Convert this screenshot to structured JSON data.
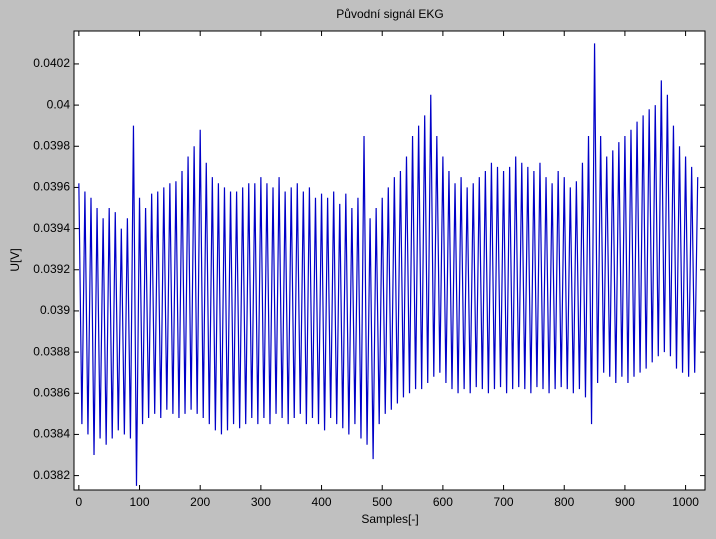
{
  "chart_data": {
    "type": "line",
    "title": "Původní signál EKG",
    "x_label": "Samples[-]",
    "y_label": "U[V]",
    "color": "#0000c8",
    "x": [
      0,
      5,
      10,
      15,
      20,
      25,
      30,
      35,
      40,
      45,
      50,
      55,
      60,
      65,
      70,
      75,
      80,
      85,
      90,
      95,
      100,
      105,
      110,
      115,
      120,
      125,
      130,
      135,
      140,
      145,
      150,
      155,
      160,
      165,
      170,
      175,
      180,
      185,
      190,
      195,
      200,
      205,
      210,
      215,
      220,
      225,
      230,
      235,
      240,
      245,
      250,
      255,
      260,
      265,
      270,
      275,
      280,
      285,
      290,
      295,
      300,
      305,
      310,
      315,
      320,
      325,
      330,
      335,
      340,
      345,
      350,
      355,
      360,
      365,
      370,
      375,
      380,
      385,
      390,
      395,
      400,
      405,
      410,
      415,
      420,
      425,
      430,
      435,
      440,
      445,
      450,
      455,
      460,
      465,
      470,
      475,
      480,
      485,
      490,
      495,
      500,
      505,
      510,
      515,
      520,
      525,
      530,
      535,
      540,
      545,
      550,
      555,
      560,
      565,
      570,
      575,
      580,
      585,
      590,
      595,
      600,
      605,
      610,
      615,
      620,
      625,
      630,
      635,
      640,
      645,
      650,
      655,
      660,
      665,
      670,
      675,
      680,
      685,
      690,
      695,
      700,
      705,
      710,
      715,
      720,
      725,
      730,
      735,
      740,
      745,
      750,
      755,
      760,
      765,
      770,
      775,
      780,
      785,
      790,
      795,
      800,
      805,
      810,
      815,
      820,
      825,
      830,
      835,
      840,
      845,
      850,
      855,
      860,
      865,
      870,
      875,
      880,
      885,
      890,
      895,
      900,
      905,
      910,
      915,
      920,
      925,
      930,
      935,
      940,
      945,
      950,
      955,
      960,
      965,
      970,
      975,
      980,
      985,
      990,
      995,
      1000,
      1005,
      1010,
      1015,
      1020
    ],
    "values": [
      0.03962,
      0.03845,
      0.03958,
      0.0384,
      0.03955,
      0.0383,
      0.0395,
      0.03838,
      0.03945,
      0.03835,
      0.0395,
      0.03838,
      0.03948,
      0.03842,
      0.0394,
      0.0384,
      0.03945,
      0.03838,
      0.0399,
      0.03815,
      0.03955,
      0.03845,
      0.0395,
      0.03848,
      0.03957,
      0.0385,
      0.03958,
      0.03848,
      0.0396,
      0.03852,
      0.03962,
      0.0385,
      0.03963,
      0.03848,
      0.03968,
      0.0385,
      0.03975,
      0.03852,
      0.0398,
      0.0385,
      0.03988,
      0.03848,
      0.03972,
      0.03845,
      0.03965,
      0.03842,
      0.03962,
      0.0384,
      0.0396,
      0.03842,
      0.03958,
      0.03845,
      0.03958,
      0.03843,
      0.0396,
      0.03845,
      0.03962,
      0.03848,
      0.03962,
      0.03845,
      0.03965,
      0.03848,
      0.03962,
      0.03845,
      0.0396,
      0.0385,
      0.03965,
      0.03848,
      0.03958,
      0.03845,
      0.0396,
      0.03848,
      0.03962,
      0.0385,
      0.03958,
      0.03845,
      0.0396,
      0.03848,
      0.03955,
      0.03845,
      0.03957,
      0.03842,
      0.03955,
      0.03848,
      0.03958,
      0.03845,
      0.03952,
      0.03843,
      0.03957,
      0.0384,
      0.0395,
      0.03845,
      0.03955,
      0.03838,
      0.03985,
      0.03835,
      0.03945,
      0.03828,
      0.0395,
      0.03845,
      0.03955,
      0.0385,
      0.0396,
      0.03852,
      0.03965,
      0.03855,
      0.03968,
      0.03858,
      0.03975,
      0.0386,
      0.03985,
      0.03862,
      0.0399,
      0.03862,
      0.03995,
      0.03865,
      0.04005,
      0.03868,
      0.03985,
      0.0387,
      0.03975,
      0.03865,
      0.03968,
      0.03862,
      0.03962,
      0.0386,
      0.03965,
      0.03862,
      0.0396,
      0.0386,
      0.03962,
      0.03863,
      0.03965,
      0.03862,
      0.03968,
      0.0386,
      0.03972,
      0.03862,
      0.0397,
      0.03863,
      0.03968,
      0.0386,
      0.0397,
      0.03862,
      0.03975,
      0.03863,
      0.03972,
      0.03862,
      0.0397,
      0.0386,
      0.03968,
      0.03863,
      0.03972,
      0.03862,
      0.03965,
      0.0386,
      0.03962,
      0.03862,
      0.03968,
      0.03863,
      0.03965,
      0.03862,
      0.0396,
      0.0386,
      0.03963,
      0.03862,
      0.03972,
      0.03858,
      0.03985,
      0.03845,
      0.0403,
      0.03865,
      0.03985,
      0.0387,
      0.03975,
      0.03868,
      0.03978,
      0.03865,
      0.03982,
      0.03868,
      0.03985,
      0.03865,
      0.03988,
      0.03868,
      0.03992,
      0.0387,
      0.03995,
      0.03872,
      0.03998,
      0.03875,
      0.04,
      0.03878,
      0.04012,
      0.0388,
      0.04005,
      0.03878,
      0.0399,
      0.03872,
      0.0398,
      0.0387,
      0.03975,
      0.03868,
      0.0397,
      0.0387,
      0.03965
    ],
    "xlim": [
      -8,
      1032
    ],
    "ylim": [
      0.03813,
      0.04036
    ],
    "xticks": [
      0,
      100,
      200,
      300,
      400,
      500,
      600,
      700,
      800,
      900,
      1000
    ],
    "yticks": [
      0.0382,
      0.0384,
      0.0386,
      0.0388,
      0.039,
      0.0392,
      0.0394,
      0.0396,
      0.0398,
      0.04,
      0.0402
    ]
  }
}
